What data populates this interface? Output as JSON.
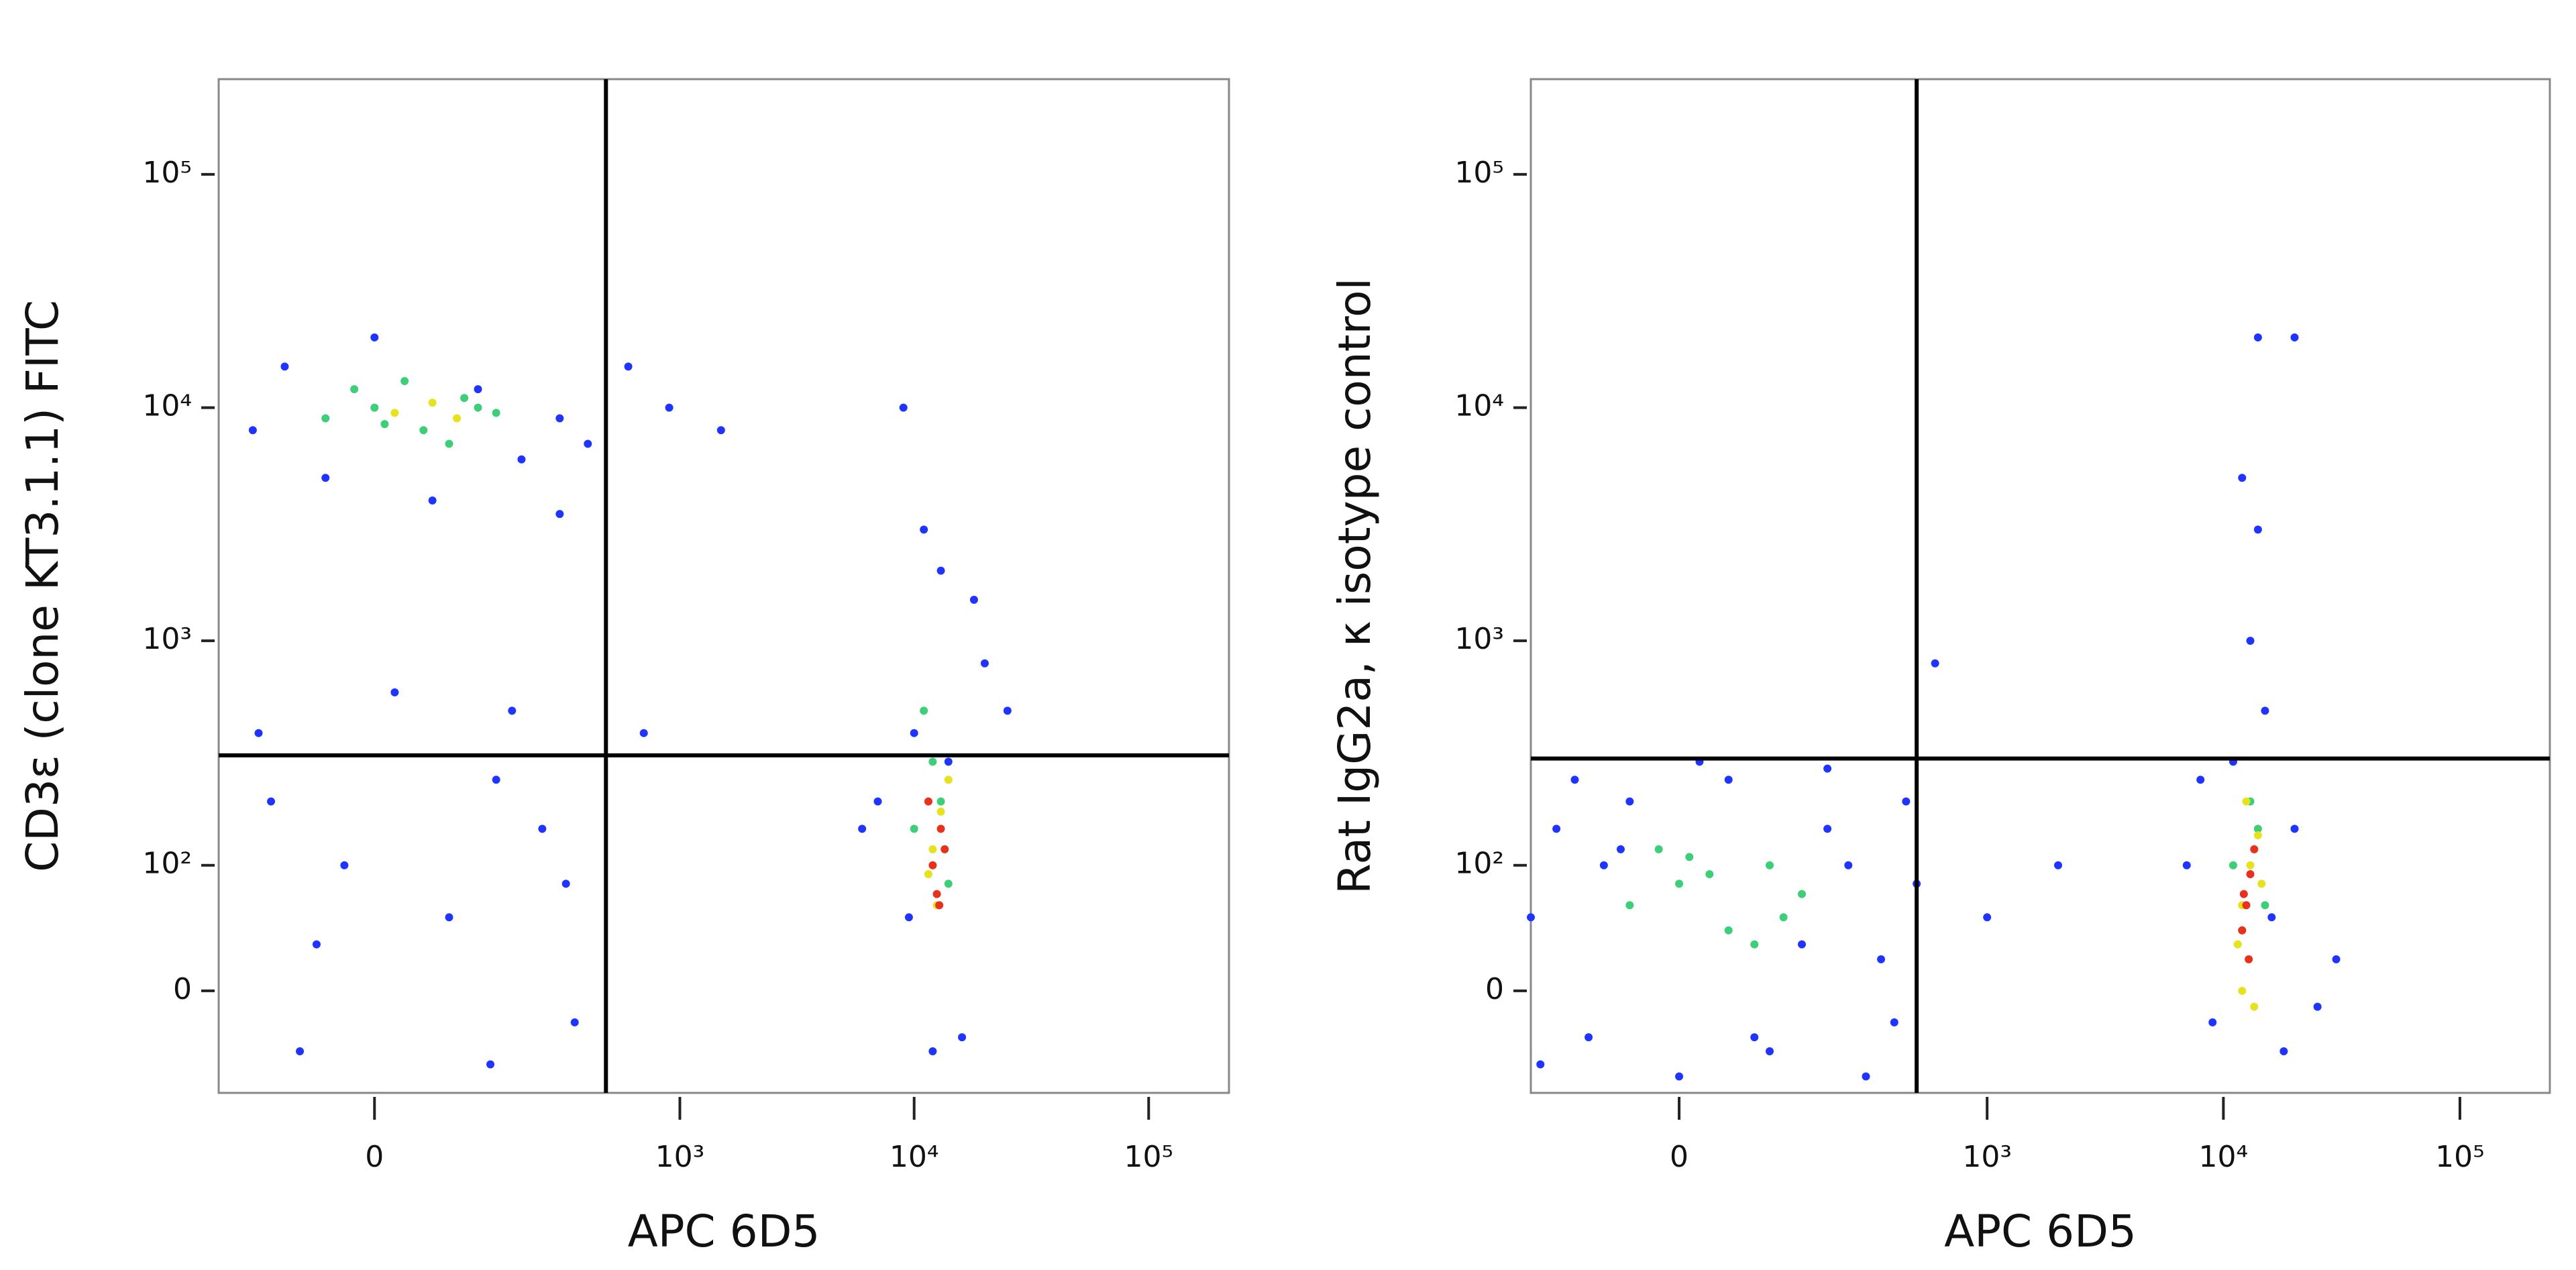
{
  "chart_data": [
    {
      "type": "scatter",
      "x_label": "APC 6D5",
      "y_label": "CD3ε (clone KT3.1.1)  FITC",
      "xscale": "biexponential",
      "yscale": "biexponential",
      "xlim": [
        -220,
        220000
      ],
      "ylim": [
        -75,
        256000
      ],
      "xticks": [
        0,
        {
          "value": 1000,
          "label": "10³"
        },
        {
          "value": 10000,
          "label": "10⁴"
        },
        {
          "value": 100000,
          "label": "10⁵"
        }
      ],
      "yticks": [
        0,
        {
          "value": 100,
          "label": "10²"
        },
        {
          "value": 1000,
          "label": "10³"
        },
        {
          "value": 10000,
          "label": "10⁴"
        },
        {
          "value": 100000,
          "label": "10⁵"
        }
      ],
      "gates": {
        "x": 480,
        "y": 320
      },
      "series": [
        {
          "color": "#1f35ff",
          "x": [
            -150,
            -100,
            -50,
            0,
            60,
            120,
            200,
            300,
            400,
            -120,
            -30,
            80,
            250,
            350,
            -80,
            150,
            320,
            -140,
            20,
            180,
            600,
            900,
            1500,
            9000,
            11000,
            20000,
            25000,
            7000,
            12000,
            18000,
            10000,
            14000,
            16000,
            9500,
            13000,
            6000,
            300,
            -60,
            140,
            700
          ],
          "values": [
            8000,
            15000,
            5000,
            20000,
            4000,
            12000,
            6000,
            9000,
            7000,
            200,
            100,
            50,
            150,
            -20,
            -40,
            250,
            80,
            400,
            600,
            500,
            15000,
            10000,
            8000,
            10000,
            3000,
            800,
            500,
            200,
            -40,
            1500,
            400,
            300,
            -30,
            50,
            2000,
            150,
            3500,
            30,
            -50,
            400
          ]
        },
        {
          "color": "#3ccf78",
          "x": [
            -50,
            0,
            50,
            100,
            150,
            -20,
            80,
            30,
            120,
            10,
            10000,
            12000,
            14000,
            11000,
            13000
          ],
          "values": [
            9000,
            10000,
            8000,
            11000,
            9500,
            12000,
            7000,
            13000,
            10000,
            8500,
            150,
            300,
            80,
            500,
            200
          ]
        },
        {
          "color": "#e6e21e",
          "x": [
            20,
            60,
            90,
            12000,
            13000,
            11500,
            14000,
            12500
          ],
          "values": [
            9500,
            10500,
            9000,
            120,
            180,
            90,
            250,
            60
          ]
        },
        {
          "color": "#e8301c",
          "x": [
            12000,
            13000,
            12500,
            11500,
            13500,
            12800
          ],
          "values": [
            100,
            150,
            70,
            200,
            120,
            60
          ]
        }
      ]
    },
    {
      "type": "scatter",
      "x_label": "APC 6D5",
      "y_label": "Rat IgG2a, κ isotype control",
      "xscale": "biexponential",
      "yscale": "biexponential",
      "xlim": [
        -200,
        240000
      ],
      "ylim": [
        -75,
        256000
      ],
      "xticks": [
        0,
        {
          "value": 1000,
          "label": "10³"
        },
        {
          "value": 10000,
          "label": "10⁴"
        },
        {
          "value": 100000,
          "label": "10⁵"
        }
      ],
      "yticks": [
        0,
        {
          "value": 100,
          "label": "10²"
        },
        {
          "value": 1000,
          "label": "10³"
        },
        {
          "value": 10000,
          "label": "10⁴"
        },
        {
          "value": 100000,
          "label": "10⁵"
        }
      ],
      "gates": {
        "x": 500,
        "y": 310
      },
      "series": [
        {
          "color": "#1f35ff",
          "x": [
            -200,
            -150,
            -100,
            -50,
            0,
            50,
            150,
            250,
            400,
            500,
            -180,
            -80,
            20,
            100,
            200,
            350,
            450,
            -120,
            80,
            300,
            7000,
            9000,
            11000,
            16000,
            20000,
            25000,
            13000,
            15000,
            14000,
            20000,
            1000,
            2000,
            600,
            12000,
            14000,
            -60,
            200,
            30000,
            8000,
            18000
          ],
          "values": [
            50,
            150,
            -30,
            200,
            -60,
            250,
            30,
            100,
            -20,
            80,
            -50,
            100,
            300,
            -40,
            150,
            20,
            200,
            250,
            -30,
            -60,
            100,
            -20,
            300,
            50,
            150,
            -10,
            1000,
            500,
            20000,
            20000,
            50,
            100,
            800,
            5000,
            3000,
            120,
            280,
            20,
            250,
            -40
          ]
        },
        {
          "color": "#3ccf78",
          "x": [
            -50,
            0,
            50,
            100,
            150,
            -20,
            80,
            30,
            120,
            10,
            11000,
            12000,
            14000,
            13000,
            15000
          ],
          "values": [
            60,
            80,
            40,
            100,
            70,
            120,
            30,
            90,
            50,
            110,
            100,
            40,
            150,
            200,
            60
          ]
        },
        {
          "color": "#e6e21e",
          "x": [
            12000,
            13000,
            11500,
            14000,
            12500,
            13500,
            12000,
            14500
          ],
          "values": [
            60,
            100,
            30,
            140,
            200,
            -10,
            0,
            80
          ]
        },
        {
          "color": "#e8301c",
          "x": [
            12500,
            13000,
            12000,
            13500,
            12800,
            12200
          ],
          "values": [
            60,
            90,
            40,
            120,
            20,
            70
          ]
        }
      ]
    }
  ]
}
